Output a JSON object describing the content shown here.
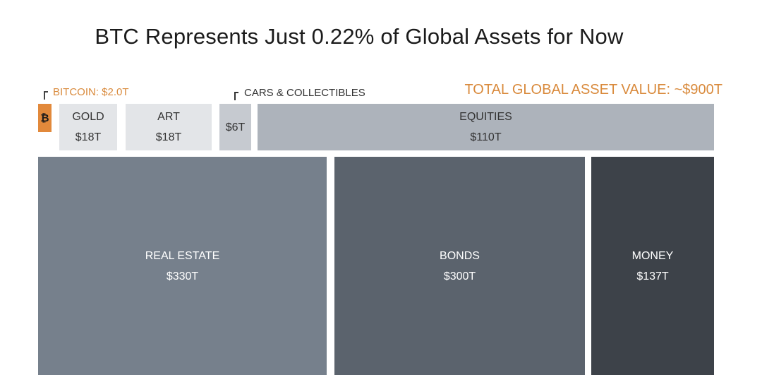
{
  "chart_data": {
    "type": "treemap",
    "title": "BTC Represents Just 0.22% of Global Assets for Now",
    "total_label": "TOTAL GLOBAL ASSET VALUE: ~$900T",
    "unit": "trillion USD",
    "items": [
      {
        "key": "bitcoin",
        "callout": "BITCOIN: $2.0T",
        "value": 2.0,
        "color": "#e2893b",
        "icon": "bitcoin-icon"
      },
      {
        "key": "gold",
        "label": "GOLD",
        "value_label": "$18T",
        "value": 18,
        "color": "#e3e5e8"
      },
      {
        "key": "art",
        "label": "ART",
        "value_label": "$18T",
        "value": 18,
        "color": "#e3e5e8"
      },
      {
        "key": "cars",
        "callout": "CARS & COLLECTIBLES",
        "value_label": "$6T",
        "value": 6,
        "color": "#c6cad0"
      },
      {
        "key": "equities",
        "label": "EQUITIES",
        "value_label": "$110T",
        "value": 110,
        "color": "#adb3bb"
      },
      {
        "key": "real_estate",
        "label": "REAL ESTATE",
        "value_label": "$330T",
        "value": 330,
        "color": "#76808c"
      },
      {
        "key": "bonds",
        "label": "BONDS",
        "value_label": "$300T",
        "value": 300,
        "color": "#5b636d"
      },
      {
        "key": "money",
        "label": "MONEY",
        "value_label": "$137T",
        "value": 137,
        "color": "#3d4249"
      }
    ],
    "bitcoin_glyph": "₿"
  }
}
